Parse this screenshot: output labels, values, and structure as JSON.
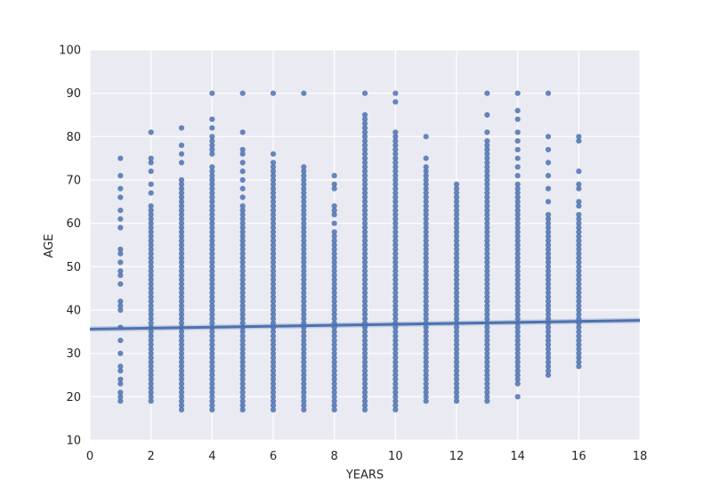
{
  "chart_data": {
    "type": "scatter",
    "title": "",
    "xlabel": "YEARS",
    "ylabel": "AGE",
    "xlim": [
      0,
      18
    ],
    "ylim": [
      10,
      100
    ],
    "xticks": [
      0,
      2,
      4,
      6,
      8,
      10,
      12,
      14,
      16,
      18
    ],
    "yticks": [
      10,
      20,
      30,
      40,
      50,
      60,
      70,
      80,
      90,
      100
    ],
    "grid": true,
    "colors": {
      "background": "#eaeaf2",
      "grid": "#ffffff",
      "points": "#4c72b0",
      "fit_line": "#4c72b0"
    },
    "columns": [
      {
        "x": 1,
        "min": 19,
        "max": 75,
        "dense": [],
        "outliers": [
          75,
          71,
          68,
          66,
          63,
          61,
          59,
          54,
          53,
          51,
          49,
          48,
          46,
          42,
          41,
          40,
          36,
          33,
          30,
          27,
          26,
          24,
          23,
          21,
          20,
          19
        ]
      },
      {
        "x": 2,
        "min": 19,
        "max": 81,
        "dense": [
          [
            19,
            64
          ]
        ],
        "outliers": [
          81,
          75,
          74,
          72,
          69,
          67
        ]
      },
      {
        "x": 3,
        "min": 17,
        "max": 82,
        "dense": [
          [
            17,
            70
          ]
        ],
        "outliers": [
          82,
          78,
          76,
          74
        ]
      },
      {
        "x": 4,
        "min": 17,
        "max": 90,
        "dense": [
          [
            17,
            73
          ]
        ],
        "outliers": [
          90,
          84,
          82,
          80,
          79,
          78,
          77,
          76
        ]
      },
      {
        "x": 5,
        "min": 17,
        "max": 90,
        "dense": [
          [
            17,
            64
          ]
        ],
        "outliers": [
          90,
          81,
          77,
          76,
          74,
          72,
          70,
          68,
          66
        ]
      },
      {
        "x": 6,
        "min": 17,
        "max": 90,
        "dense": [
          [
            17,
            74
          ]
        ],
        "outliers": [
          90,
          76
        ]
      },
      {
        "x": 7,
        "min": 17,
        "max": 90,
        "dense": [
          [
            17,
            73
          ]
        ],
        "outliers": [
          90
        ]
      },
      {
        "x": 8,
        "min": 17,
        "max": 71,
        "dense": [
          [
            17,
            58
          ]
        ],
        "outliers": [
          71,
          69,
          68,
          64,
          63,
          62,
          60
        ]
      },
      {
        "x": 9,
        "min": 17,
        "max": 90,
        "dense": [
          [
            17,
            85
          ]
        ],
        "outliers": [
          90
        ]
      },
      {
        "x": 10,
        "min": 17,
        "max": 90,
        "dense": [
          [
            17,
            81
          ]
        ],
        "outliers": [
          90,
          88
        ]
      },
      {
        "x": 11,
        "min": 19,
        "max": 80,
        "dense": [
          [
            19,
            73
          ]
        ],
        "outliers": [
          80,
          75
        ]
      },
      {
        "x": 12,
        "min": 19,
        "max": 69,
        "dense": [
          [
            19,
            69
          ]
        ],
        "outliers": []
      },
      {
        "x": 13,
        "min": 19,
        "max": 90,
        "dense": [
          [
            19,
            77
          ]
        ],
        "outliers": [
          90,
          85,
          81,
          79,
          78
        ]
      },
      {
        "x": 14,
        "min": 20,
        "max": 90,
        "dense": [
          [
            23,
            69
          ]
        ],
        "outliers": [
          90,
          86,
          84,
          81,
          79,
          77,
          75,
          73,
          71,
          20
        ]
      },
      {
        "x": 15,
        "min": 25,
        "max": 90,
        "dense": [
          [
            25,
            62
          ]
        ],
        "outliers": [
          90,
          80,
          77,
          74,
          71,
          68,
          65
        ]
      },
      {
        "x": 16,
        "min": 27,
        "max": 80,
        "dense": [
          [
            27,
            62
          ]
        ],
        "outliers": [
          80,
          79,
          72,
          69,
          68,
          65,
          64
        ]
      }
    ],
    "fit_line": {
      "x": [
        0,
        18
      ],
      "y": [
        35.6,
        37.6
      ]
    }
  }
}
